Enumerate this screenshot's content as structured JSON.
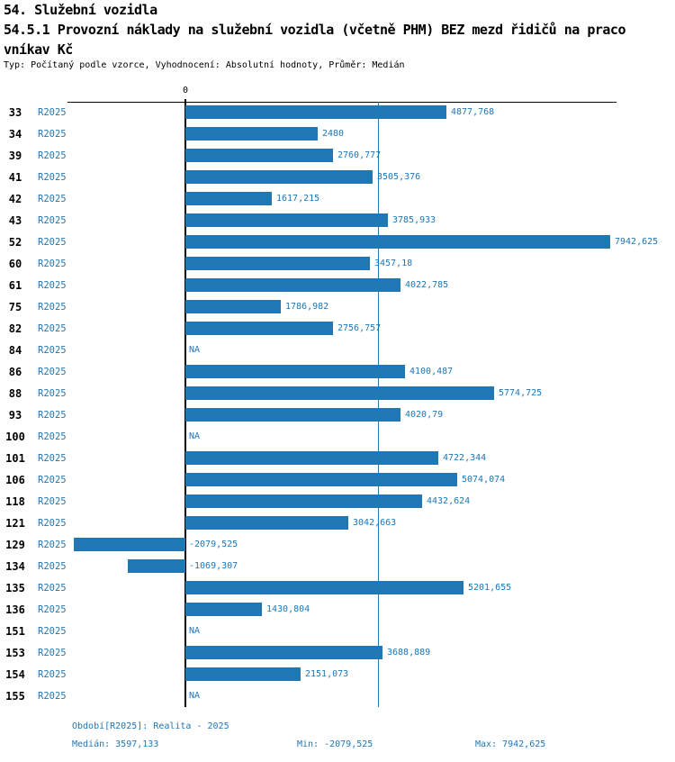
{
  "page": {
    "title": "54. Služební vozidla",
    "subtitle_line1": "54.5.1 Provozní náklady na služební vozidla (včetně PHM) BEZ mezd řidičů na praco",
    "subtitle_line2": "vníkav Kč",
    "meta": "Typ: Počítaný podle vzorce, Vyhodnocení: Absolutní hodnoty, Průměr: Medián"
  },
  "chart_data": {
    "type": "bar",
    "orientation": "horizontal",
    "series": "R2025",
    "x_zero_tick_label": "0",
    "na_label": "NA",
    "median_value": 3597.133,
    "xlim": [
      -2200,
      8900
    ],
    "rows": [
      {
        "id": "33",
        "period": "R2025",
        "value": 4877.768,
        "label": "4877,768"
      },
      {
        "id": "34",
        "period": "R2025",
        "value": 2480,
        "label": "2480"
      },
      {
        "id": "39",
        "period": "R2025",
        "value": 2760.777,
        "label": "2760,777"
      },
      {
        "id": "41",
        "period": "R2025",
        "value": 3505.376,
        "label": "3505,376"
      },
      {
        "id": "42",
        "period": "R2025",
        "value": 1617.215,
        "label": "1617,215"
      },
      {
        "id": "43",
        "period": "R2025",
        "value": 3785.933,
        "label": "3785,933"
      },
      {
        "id": "52",
        "period": "R2025",
        "value": 7942.625,
        "label": "7942,625"
      },
      {
        "id": "60",
        "period": "R2025",
        "value": 3457.18,
        "label": "3457,18"
      },
      {
        "id": "61",
        "period": "R2025",
        "value": 4022.785,
        "label": "4022,785"
      },
      {
        "id": "75",
        "period": "R2025",
        "value": 1786.982,
        "label": "1786,982"
      },
      {
        "id": "82",
        "period": "R2025",
        "value": 2756.757,
        "label": "2756,757"
      },
      {
        "id": "84",
        "period": "R2025",
        "value": null,
        "label": "NA"
      },
      {
        "id": "86",
        "period": "R2025",
        "value": 4100.487,
        "label": "4100,487"
      },
      {
        "id": "88",
        "period": "R2025",
        "value": 5774.725,
        "label": "5774,725"
      },
      {
        "id": "93",
        "period": "R2025",
        "value": 4020.79,
        "label": "4020,79"
      },
      {
        "id": "100",
        "period": "R2025",
        "value": null,
        "label": "NA"
      },
      {
        "id": "101",
        "period": "R2025",
        "value": 4722.344,
        "label": "4722,344"
      },
      {
        "id": "106",
        "period": "R2025",
        "value": 5074.074,
        "label": "5074,074"
      },
      {
        "id": "118",
        "period": "R2025",
        "value": 4432.624,
        "label": "4432,624"
      },
      {
        "id": "121",
        "period": "R2025",
        "value": 3042.663,
        "label": "3042,663"
      },
      {
        "id": "129",
        "period": "R2025",
        "value": -2079.525,
        "label": "-2079,525"
      },
      {
        "id": "134",
        "period": "R2025",
        "value": -1069.307,
        "label": "-1069,307"
      },
      {
        "id": "135",
        "period": "R2025",
        "value": 5201.655,
        "label": "5201,655"
      },
      {
        "id": "136",
        "period": "R2025",
        "value": 1430.804,
        "label": "1430,804"
      },
      {
        "id": "151",
        "period": "R2025",
        "value": null,
        "label": "NA"
      },
      {
        "id": "153",
        "period": "R2025",
        "value": 3688.889,
        "label": "3688,889"
      },
      {
        "id": "154",
        "period": "R2025",
        "value": 2151.073,
        "label": "2151,073"
      },
      {
        "id": "155",
        "period": "R2025",
        "value": null,
        "label": "NA"
      }
    ]
  },
  "footer": {
    "period_note": "Období[R2025]: Realita - 2025",
    "median": "Medián: 3597,133",
    "min": "Min: -2079,525",
    "max": "Max: 7942,625"
  },
  "colors": {
    "bar": "#2077b4",
    "text_accent": "#2077b4",
    "axis": "#000000"
  }
}
